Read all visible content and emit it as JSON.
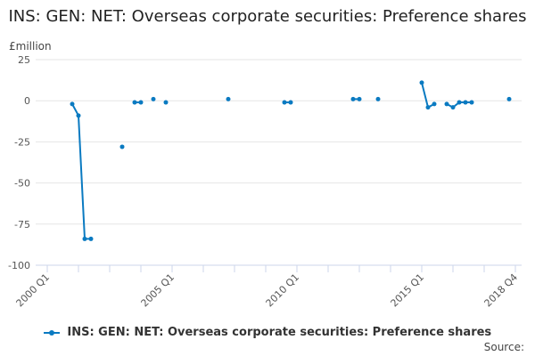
{
  "chart_data": {
    "type": "line",
    "title": "INS: GEN: NET: Overseas corporate securities: Preference shares",
    "ylabel": "£million",
    "xlabel": "",
    "ylim": [
      -100,
      25
    ],
    "yticks": [
      25,
      0,
      -25,
      -50,
      -75,
      -100
    ],
    "xtick_labels": [
      "2000 Q1",
      "2005 Q1",
      "2010 Q1",
      "2015 Q1",
      "2018 Q4"
    ],
    "xtick_label_index": [
      0,
      20,
      40,
      60,
      75
    ],
    "x_start": "2000 Q1",
    "x_end": "2018 Q4",
    "grid": true,
    "legend_position": "bottom",
    "color": "#0a7ac1",
    "series": [
      {
        "name": "INS: GEN: NET: Overseas corporate securities: Preference shares",
        "points": [
          {
            "x": "2001 Q1",
            "y": -2
          },
          {
            "x": "2001 Q2",
            "y": -9
          },
          {
            "x": "2001 Q3",
            "y": -84
          },
          {
            "x": "2001 Q4",
            "y": -84
          },
          {
            "x": "2003 Q1",
            "y": -28
          },
          {
            "x": "2003 Q3",
            "y": -1
          },
          {
            "x": "2003 Q4",
            "y": -1
          },
          {
            "x": "2004 Q2",
            "y": 1
          },
          {
            "x": "2004 Q4",
            "y": -1
          },
          {
            "x": "2007 Q2",
            "y": 1
          },
          {
            "x": "2009 Q3",
            "y": -1
          },
          {
            "x": "2009 Q4",
            "y": -1
          },
          {
            "x": "2012 Q2",
            "y": 1
          },
          {
            "x": "2012 Q3",
            "y": 1
          },
          {
            "x": "2013 Q2",
            "y": 1
          },
          {
            "x": "2015 Q1",
            "y": 11
          },
          {
            "x": "2015 Q2",
            "y": -4
          },
          {
            "x": "2015 Q3",
            "y": -2
          },
          {
            "x": "2016 Q1",
            "y": -2
          },
          {
            "x": "2016 Q2",
            "y": -4
          },
          {
            "x": "2016 Q3",
            "y": -1
          },
          {
            "x": "2016 Q4",
            "y": -1
          },
          {
            "x": "2017 Q1",
            "y": -1
          },
          {
            "x": "2018 Q3",
            "y": 1
          }
        ]
      }
    ]
  },
  "source_label": "Source:"
}
